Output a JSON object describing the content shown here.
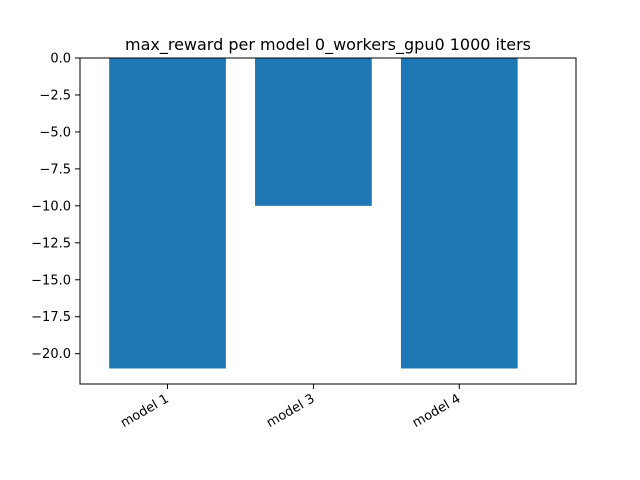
{
  "chart_data": {
    "type": "bar",
    "title": "max_reward per model 0_workers_gpu0 1000 iters",
    "xlabel": "",
    "ylabel": "",
    "categories": [
      "model 1",
      "model 3",
      "model 4"
    ],
    "values": [
      -21.0,
      -10.0,
      -21.0
    ],
    "ylim": [
      -22.05,
      0.0
    ],
    "yticks": [
      0.0,
      -2.5,
      -5.0,
      -7.5,
      -10.0,
      -12.5,
      -15.0,
      -17.5,
      -20.0
    ],
    "ytick_labels": [
      "0.0",
      "−2.5",
      "−5.0",
      "−7.5",
      "−10.0",
      "−12.5",
      "−15.0",
      "−17.5",
      "−20.0"
    ],
    "bar_color": "#1f77b4",
    "grid": false,
    "x_tick_rotation_deg": 30
  }
}
